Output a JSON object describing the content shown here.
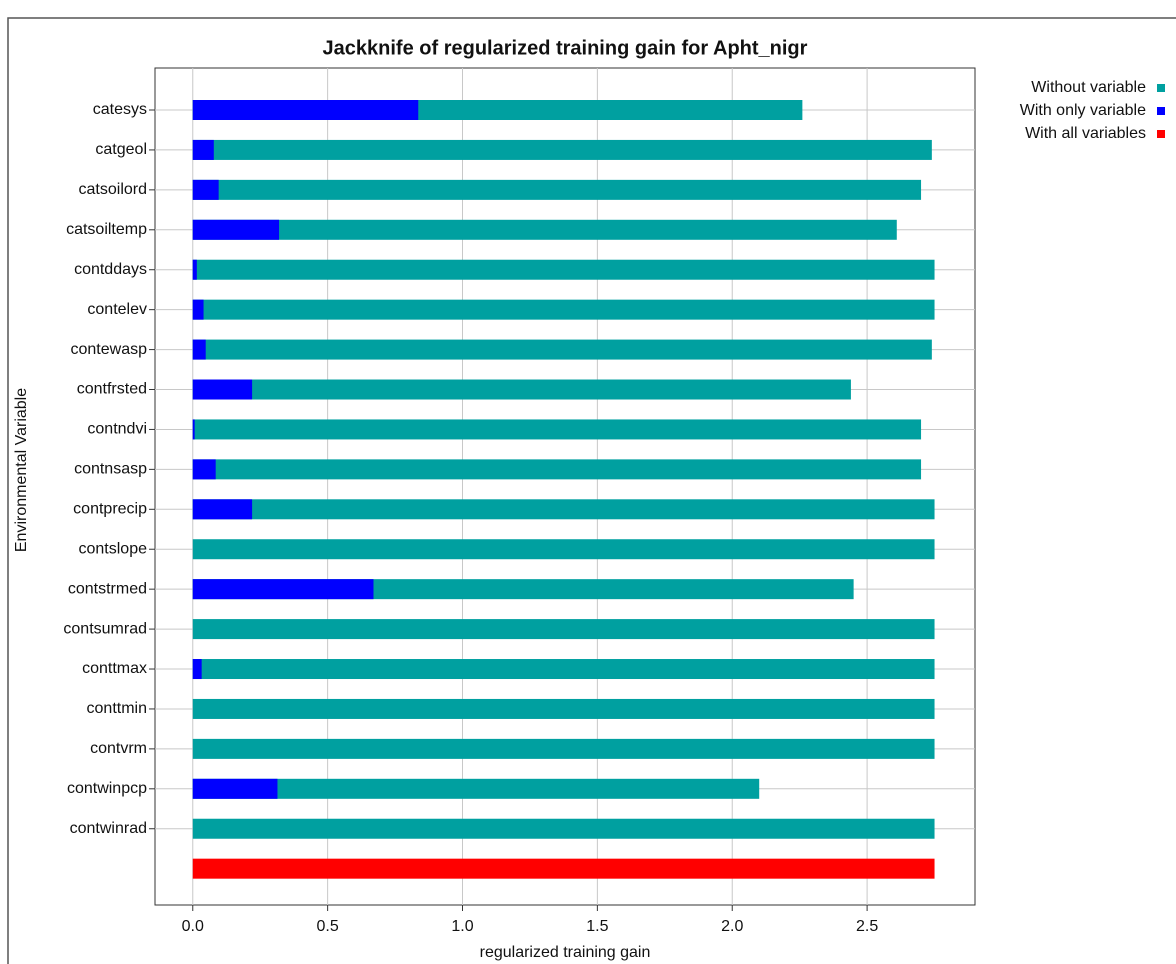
{
  "chart_data": {
    "type": "hbar",
    "title": "Jackknife of regularized training gain for Apht_nigr",
    "x_label": "regularized training gain",
    "y_label": "Environmental Variable",
    "categories": [
      "catesys",
      "catgeol",
      "catsoilord",
      "catsoiltemp",
      "contddays",
      "contelev",
      "contewasp",
      "contfrsted",
      "contndvi",
      "contnsasp",
      "contprecip",
      "contslope",
      "contstrmed",
      "contsumrad",
      "conttmax",
      "conttmin",
      "contvrm",
      "contwinpcp",
      "contwinrad",
      null
    ],
    "series": [
      {
        "name": "Without variable",
        "color": "#00a0a0",
        "values": [
          2.26,
          2.74,
          2.7,
          2.61,
          2.75,
          2.75,
          2.74,
          2.44,
          2.7,
          2.7,
          2.75,
          2.75,
          2.45,
          2.75,
          2.75,
          2.75,
          2.75,
          2.1,
          2.75,
          null
        ]
      },
      {
        "name": "With only variable",
        "color": "#0000ff",
        "values": [
          0.836,
          0.078,
          0.096,
          0.32,
          0.015,
          0.04,
          0.048,
          0.22,
          0.007,
          0.085,
          0.22,
          0,
          0.67,
          0,
          0.033,
          0,
          0,
          0.314,
          0,
          null
        ]
      },
      {
        "name": "With all variables",
        "color": "#ff0000",
        "values": [
          null,
          null,
          null,
          null,
          null,
          null,
          null,
          null,
          null,
          null,
          null,
          null,
          null,
          null,
          null,
          null,
          null,
          null,
          null,
          2.75
        ]
      }
    ],
    "xlim": [
      -0.14,
      2.9
    ],
    "xticks": [
      {
        "value": 0,
        "label": "0.0"
      },
      0.5,
      {
        "value": 1,
        "label": "1.0"
      },
      1.5,
      {
        "value": 2,
        "label": "2.0"
      },
      2.5
    ],
    "grid": true,
    "legend": "top-right"
  }
}
